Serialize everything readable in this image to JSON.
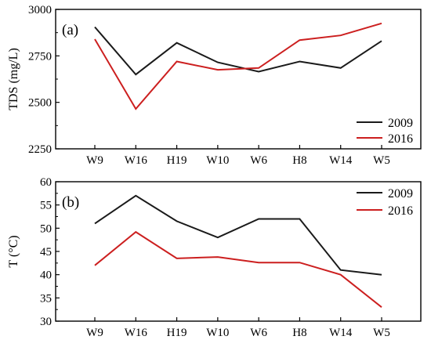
{
  "chart_data": [
    {
      "type": "line",
      "panel_label": "(a)",
      "title": "",
      "xlabel": "",
      "ylabel": "TDS (mg/L)",
      "categories": [
        "W9",
        "W16",
        "H19",
        "W10",
        "W6",
        "H8",
        "W14",
        "W5"
      ],
      "yticks": [
        2250,
        2500,
        2750,
        3000
      ],
      "ylim": [
        2250,
        3000
      ],
      "grid": false,
      "legend_position": "bottom-right",
      "series": [
        {
          "name": "2009",
          "color": "#1a1a1a",
          "values": [
            2905,
            2650,
            2820,
            2715,
            2665,
            2720,
            2685,
            2830
          ]
        },
        {
          "name": "2016",
          "color": "#cc1f1f",
          "values": [
            2840,
            2465,
            2720,
            2675,
            2685,
            2835,
            2860,
            2925
          ]
        }
      ]
    },
    {
      "type": "line",
      "panel_label": "(b)",
      "title": "",
      "xlabel": "",
      "ylabel": "T (°C)",
      "categories": [
        "W9",
        "W16",
        "H19",
        "W10",
        "W6",
        "H8",
        "W14",
        "W5"
      ],
      "yticks": [
        30,
        35,
        40,
        45,
        50,
        55,
        60
      ],
      "ylim": [
        30,
        60
      ],
      "grid": false,
      "legend_position": "top-right",
      "series": [
        {
          "name": "2009",
          "color": "#1a1a1a",
          "values": [
            51,
            57,
            51.5,
            48,
            52,
            52,
            41,
            40
          ]
        },
        {
          "name": "2016",
          "color": "#cc1f1f",
          "values": [
            42,
            49.2,
            43.5,
            43.8,
            42.6,
            42.6,
            40,
            33
          ]
        }
      ]
    }
  ]
}
